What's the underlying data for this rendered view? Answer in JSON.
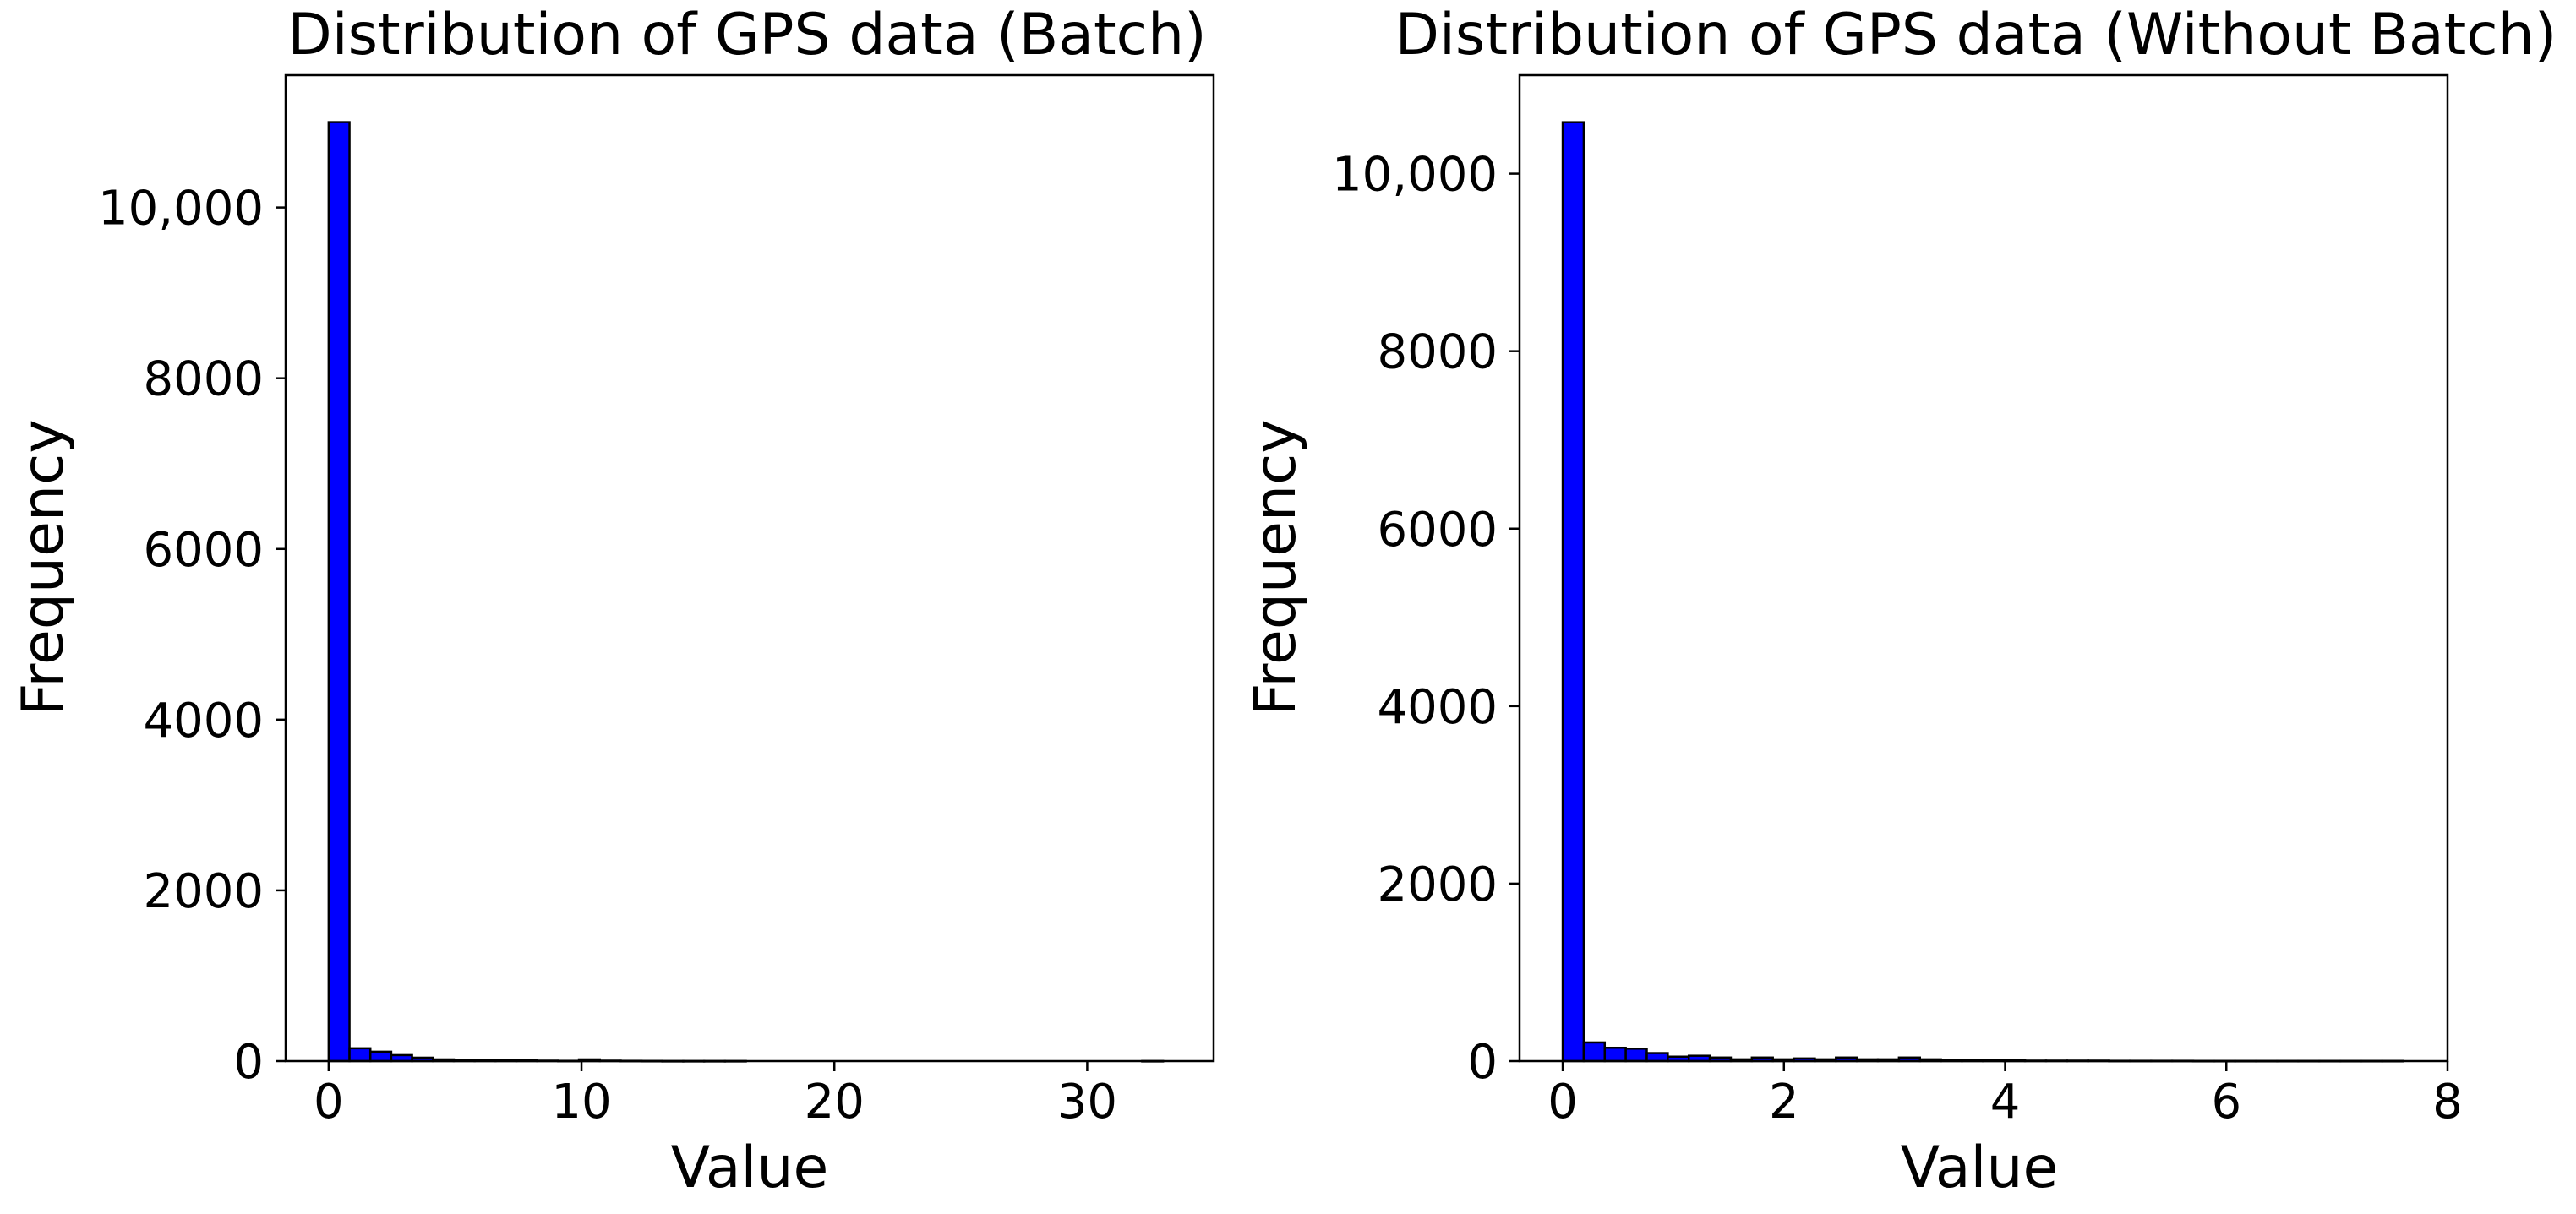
{
  "chart_data": [
    {
      "type": "bar",
      "title": "Distribution of GPS data (Batch)",
      "xlabel": "Value",
      "ylabel": "Frequency",
      "xlim": [
        -1.7,
        35.0
      ],
      "ylim": [
        0,
        11550
      ],
      "x_ticks": [
        0,
        10,
        20,
        30
      ],
      "x_tick_labels": [
        "0",
        "10",
        "20",
        "30"
      ],
      "y_ticks": [
        0,
        2000,
        4000,
        6000,
        8000,
        10000
      ],
      "y_tick_labels": [
        "0",
        "2000",
        "4000",
        "6000",
        "8000",
        "10,000"
      ],
      "bin_start": 0,
      "bin_width": 0.825,
      "values": [
        11000,
        150,
        110,
        70,
        40,
        20,
        15,
        12,
        10,
        8,
        5,
        3,
        20,
        5,
        3,
        2,
        1,
        1,
        1,
        1,
        0,
        0,
        0,
        0,
        0,
        0,
        0,
        0,
        0,
        0,
        0,
        0,
        0,
        0,
        0,
        0,
        0,
        0,
        0,
        1
      ],
      "bar_color": "#0000ff",
      "edge_color": "#000000",
      "grid": false
    },
    {
      "type": "bar",
      "title": "Distribution of GPS data (Without Batch)",
      "xlabel": "Value",
      "ylabel": "Frequency",
      "xlim": [
        -0.39,
        8.0
      ],
      "ylim": [
        0,
        11110
      ],
      "x_ticks": [
        0,
        2,
        4,
        6,
        8
      ],
      "x_tick_labels": [
        "0",
        "2",
        "4",
        "6",
        "8"
      ],
      "y_ticks": [
        0,
        2000,
        4000,
        6000,
        8000,
        10000
      ],
      "y_tick_labels": [
        "0",
        "2000",
        "4000",
        "6000",
        "8000",
        "10,000"
      ],
      "bin_start": 0,
      "bin_width": 0.19,
      "values": [
        10580,
        210,
        150,
        140,
        90,
        50,
        60,
        40,
        20,
        40,
        20,
        30,
        20,
        40,
        20,
        20,
        40,
        20,
        15,
        15,
        15,
        10,
        5,
        5,
        5,
        5,
        3,
        3,
        3,
        3,
        2,
        2,
        2,
        2,
        2,
        2,
        2,
        2,
        2,
        2
      ],
      "bar_color": "#0000ff",
      "edge_color": "#000000",
      "grid": false
    }
  ]
}
